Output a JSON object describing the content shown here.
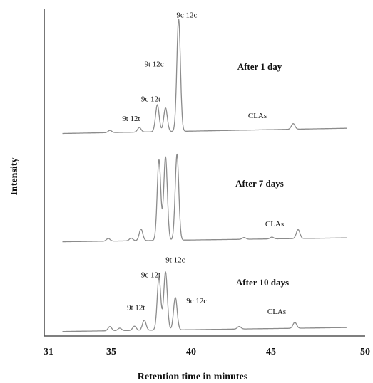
{
  "chart_data": {
    "type": "line",
    "xlabel": "Retention time in minutes",
    "ylabel": "Intensity",
    "x_ticks": [
      "31",
      "35",
      "40",
      "45",
      "50"
    ],
    "xlim": [
      31,
      50
    ],
    "grid": false,
    "colors": {
      "trace": "#8c8c8c",
      "axis": "#555555",
      "text": "#111111"
    },
    "series": [
      {
        "panel": "After 1 day",
        "side_label": "CLAs",
        "baseline": 0,
        "peaks": [
          {
            "t": 35.1,
            "h": 0.02
          },
          {
            "t": 36.9,
            "h": 0.04
          },
          {
            "t": 38.0,
            "h": 0.24
          },
          {
            "t": 38.5,
            "h": 0.21
          },
          {
            "t": 39.3,
            "h": 1.0
          },
          {
            "t": 46.3,
            "h": 0.05
          }
        ],
        "annotations": [
          {
            "text": "9t 12t",
            "t": 36.4,
            "h": 0.1
          },
          {
            "text": "9c 12t",
            "t": 37.6,
            "h": 0.27
          },
          {
            "text": "9t 12c",
            "t": 37.8,
            "h": 0.58
          },
          {
            "text": "9c 12c",
            "t": 39.8,
            "h": 1.01
          }
        ]
      },
      {
        "panel": "After 7 days",
        "side_label": "CLAs",
        "baseline": 0,
        "peaks": [
          {
            "t": 35.0,
            "h": 0.03
          },
          {
            "t": 36.4,
            "h": 0.03
          },
          {
            "t": 37.0,
            "h": 0.13
          },
          {
            "t": 38.1,
            "h": 0.9
          },
          {
            "t": 38.5,
            "h": 0.93
          },
          {
            "t": 39.2,
            "h": 0.96
          },
          {
            "t": 43.3,
            "h": 0.02
          },
          {
            "t": 45.0,
            "h": 0.02
          },
          {
            "t": 46.6,
            "h": 0.1
          }
        ],
        "annotations": []
      },
      {
        "panel": "After 10 days",
        "side_label": "CLAs",
        "baseline": 0,
        "peaks": [
          {
            "t": 35.1,
            "h": 0.05
          },
          {
            "t": 35.7,
            "h": 0.03
          },
          {
            "t": 36.6,
            "h": 0.05
          },
          {
            "t": 37.2,
            "h": 0.12
          },
          {
            "t": 38.1,
            "h": 0.62
          },
          {
            "t": 38.5,
            "h": 0.68
          },
          {
            "t": 39.1,
            "h": 0.38
          },
          {
            "t": 43.0,
            "h": 0.03
          },
          {
            "t": 46.4,
            "h": 0.07
          }
        ],
        "annotations": [
          {
            "text": "9t 12t",
            "t": 36.7,
            "h": 0.24
          },
          {
            "text": "9c 12t",
            "t": 37.6,
            "h": 0.62
          },
          {
            "text": "9t 12c",
            "t": 39.1,
            "h": 0.79
          },
          {
            "text": "9c 12c",
            "t": 40.4,
            "h": 0.31
          }
        ]
      }
    ]
  }
}
